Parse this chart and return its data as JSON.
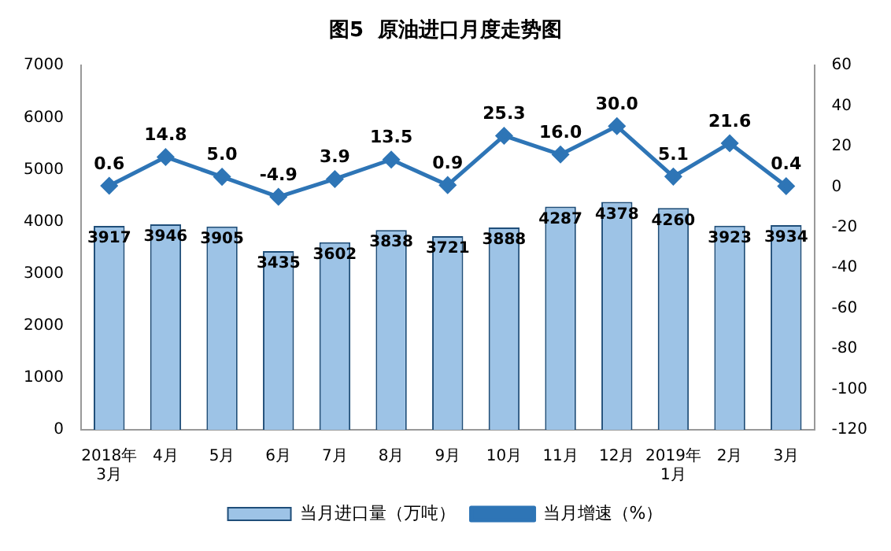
{
  "chart_data": {
    "type": "bar",
    "title": "图5  原油进口月度走势图",
    "categories": [
      "2018年\n3月",
      "4月",
      "5月",
      "6月",
      "7月",
      "8月",
      "9月",
      "10月",
      "11月",
      "12月",
      "2019年\n1月",
      "2月",
      "3月"
    ],
    "series": [
      {
        "name": "当月进口量（万吨）",
        "color": "#9dc3e6",
        "values": [
          3917,
          3946,
          3905,
          3435,
          3602,
          3838,
          3721,
          3888,
          4287,
          4378,
          4260,
          3923,
          3934
        ],
        "value_labels": [
          "3917",
          "3946",
          "3905",
          "3435",
          "3602",
          "3838",
          "3721",
          "3888",
          "4287",
          "4378",
          "4260",
          "3923",
          "3934"
        ]
      },
      {
        "name": "当月增速（%）",
        "type": "line",
        "axis": "y2",
        "color": "#2e75b6",
        "values": [
          0.6,
          14.8,
          5.0,
          -4.9,
          3.9,
          13.5,
          0.9,
          25.3,
          16.0,
          30.0,
          5.1,
          21.6,
          0.4
        ],
        "value_labels": [
          "0.6",
          "14.8",
          "5.0",
          "-4.9",
          "3.9",
          "13.5",
          "0.9",
          "25.3",
          "16.0",
          "30.0",
          "5.1",
          "21.6",
          "0.4"
        ]
      }
    ],
    "ylim": [
      0,
      7000
    ],
    "yticks": [
      0,
      1000,
      2000,
      3000,
      4000,
      5000,
      6000,
      7000
    ],
    "y2lim": [
      -120,
      60
    ],
    "y2ticks": [
      -120,
      -100,
      -80,
      -60,
      -40,
      -20,
      0,
      20,
      40,
      60
    ],
    "grid": false,
    "legend": "bottom",
    "marker": "diamond",
    "line_style": "solid"
  }
}
